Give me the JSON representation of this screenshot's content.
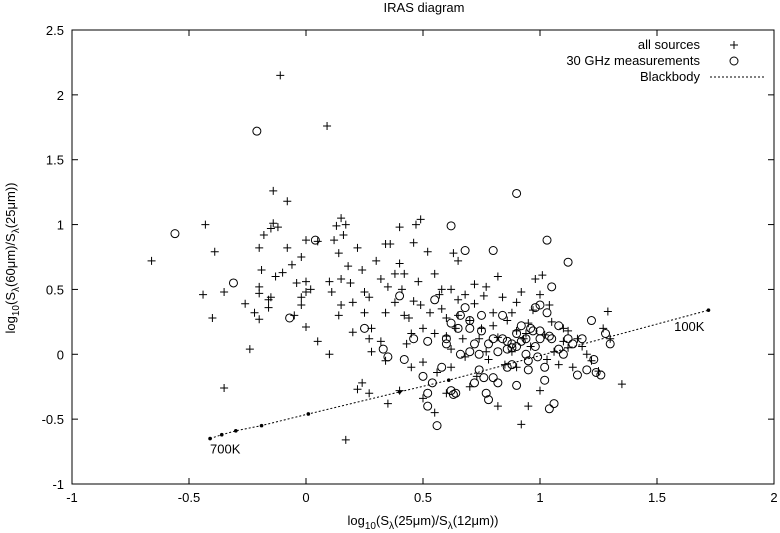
{
  "chart_data": {
    "type": "scatter",
    "title": "IRAS diagram",
    "xlabel": {
      "prefix": "log",
      "sub1": "10",
      "mid1": "(S",
      "sub2": "λ",
      "mid2": "(25μm)/S",
      "sub3": "λ",
      "suffix": "(12μm))"
    },
    "ylabel": {
      "prefix": "log",
      "sub1": "10",
      "mid1": "(S",
      "sub2": "λ",
      "mid2": "(60μm)/S",
      "sub3": "λ",
      "suffix": "(25μm))"
    },
    "xlim": [
      -1,
      2
    ],
    "ylim": [
      -1,
      2.5
    ],
    "xticks": [
      -1,
      -0.5,
      0,
      0.5,
      1,
      1.5,
      2
    ],
    "xtick_labels": [
      "-1",
      "-0.5",
      "0",
      "0.5",
      "1",
      "1.5",
      "2"
    ],
    "yticks": [
      -1,
      -0.5,
      0,
      0.5,
      1,
      1.5,
      2,
      2.5
    ],
    "ytick_labels": [
      "-1",
      "-0.5",
      "0",
      "0.5",
      "1",
      "1.5",
      "2",
      "2.5"
    ],
    "grid": false,
    "legend_position": "top-right",
    "series": [
      {
        "name": "all sources",
        "marker": "plus",
        "points": [
          [
            -0.66,
            0.72
          ],
          [
            -0.43,
            1.0
          ],
          [
            -0.44,
            0.46
          ],
          [
            -0.39,
            0.79
          ],
          [
            -0.4,
            0.28
          ],
          [
            -0.35,
            0.48
          ],
          [
            -0.35,
            -0.26
          ],
          [
            -0.26,
            0.39
          ],
          [
            -0.24,
            0.04
          ],
          [
            -0.22,
            0.32
          ],
          [
            -0.2,
            0.27
          ],
          [
            -0.2,
            0.47
          ],
          [
            -0.2,
            0.52
          ],
          [
            -0.2,
            0.82
          ],
          [
            -0.19,
            0.65
          ],
          [
            -0.18,
            0.92
          ],
          [
            -0.16,
            0.42
          ],
          [
            -0.16,
            0.36
          ],
          [
            -0.15,
            0.44
          ],
          [
            -0.15,
            0.97
          ],
          [
            -0.14,
            1.01
          ],
          [
            -0.14,
            1.26
          ],
          [
            -0.12,
            0.98
          ],
          [
            -0.11,
            2.15
          ],
          [
            -0.1,
            0.63
          ],
          [
            -0.08,
            1.18
          ],
          [
            -0.08,
            0.82
          ],
          [
            -0.06,
            0.69
          ],
          [
            -0.04,
            0.55
          ],
          [
            -0.02,
            0.44
          ],
          [
            -0.02,
            0.38
          ],
          [
            0.0,
            0.56
          ],
          [
            -0.02,
            0.75
          ],
          [
            0.0,
            0.48
          ],
          [
            0.0,
            0.21
          ],
          [
            0.0,
            0.88
          ],
          [
            0.02,
            0.5
          ],
          [
            0.05,
            0.87
          ],
          [
            0.09,
            1.76
          ],
          [
            0.1,
            0.56
          ],
          [
            0.11,
            0.48
          ],
          [
            0.12,
            0.88
          ],
          [
            0.13,
            0.99
          ],
          [
            0.14,
            0.78
          ],
          [
            0.15,
            1.05
          ],
          [
            0.15,
            0.58
          ],
          [
            0.15,
            0.38
          ],
          [
            0.16,
            0.92
          ],
          [
            0.17,
            1.0
          ],
          [
            0.17,
            -0.66
          ],
          [
            0.19,
            0.55
          ],
          [
            0.2,
            0.4
          ],
          [
            0.2,
            0.17
          ],
          [
            0.22,
            0.82
          ],
          [
            0.24,
            0.65
          ],
          [
            0.25,
            0.48
          ],
          [
            0.25,
            0.32
          ],
          [
            0.27,
            0.44
          ],
          [
            0.27,
            0.12
          ],
          [
            0.28,
            0.02
          ],
          [
            0.3,
            0.72
          ],
          [
            0.32,
            0.58
          ],
          [
            0.34,
            0.85
          ],
          [
            0.34,
            0.32
          ],
          [
            0.35,
            0.52
          ],
          [
            0.36,
            0.85
          ],
          [
            0.38,
            0.62
          ],
          [
            0.38,
            0.4
          ],
          [
            0.4,
            0.98
          ],
          [
            0.4,
            0.7
          ],
          [
            0.41,
            0.5
          ],
          [
            0.42,
            0.62
          ],
          [
            0.42,
            0.3
          ],
          [
            0.43,
            0.08
          ],
          [
            0.44,
            0.28
          ],
          [
            0.45,
            0.16
          ],
          [
            0.46,
            0.41
          ],
          [
            0.46,
            0.86
          ],
          [
            0.47,
            1.0
          ],
          [
            0.48,
            0.56
          ],
          [
            0.49,
            1.04
          ],
          [
            0.49,
            0.38
          ],
          [
            0.5,
            0.2
          ],
          [
            0.5,
            -0.06
          ],
          [
            0.52,
            0.79
          ],
          [
            0.53,
            0.32
          ],
          [
            0.55,
            0.62
          ],
          [
            0.55,
            0.16
          ],
          [
            0.56,
            -0.14
          ],
          [
            0.57,
            0.46
          ],
          [
            0.58,
            0.35
          ],
          [
            0.6,
            0.28
          ],
          [
            0.6,
            0.14
          ],
          [
            0.62,
            0.5
          ],
          [
            0.62,
            -0.1
          ],
          [
            0.63,
            0.78
          ],
          [
            0.64,
            0.2
          ],
          [
            0.65,
            0.72
          ],
          [
            0.65,
            0.42
          ],
          [
            0.65,
            0.3
          ],
          [
            0.67,
            0.12
          ],
          [
            0.68,
            0.46
          ],
          [
            0.68,
            -0.02
          ],
          [
            0.7,
            0.26
          ],
          [
            0.72,
            0.54
          ],
          [
            0.72,
            0.39
          ],
          [
            0.73,
            -0.17
          ],
          [
            0.74,
            0.12
          ],
          [
            0.75,
            0.2
          ],
          [
            0.76,
            0.45
          ],
          [
            0.77,
            0.52
          ],
          [
            0.77,
            0.02
          ],
          [
            0.78,
            -0.04
          ],
          [
            0.8,
            0.32
          ],
          [
            0.8,
            0.22
          ],
          [
            0.82,
            0.13
          ],
          [
            0.82,
            0.6
          ],
          [
            0.84,
            0.44
          ],
          [
            0.85,
            -0.08
          ],
          [
            0.86,
            0.26
          ],
          [
            0.88,
            0.02
          ],
          [
            0.9,
            0.4
          ],
          [
            0.9,
            0.18
          ],
          [
            0.92,
            0.48
          ],
          [
            0.93,
            0.12
          ],
          [
            0.95,
            0.24
          ],
          [
            0.96,
            0.06
          ],
          [
            0.97,
            0.34
          ],
          [
            0.98,
            0.58
          ],
          [
            1.0,
            0.46
          ],
          [
            1.01,
            0.61
          ],
          [
            1.02,
            0.15
          ],
          [
            1.03,
            -0.04
          ],
          [
            1.05,
            0.25
          ],
          [
            1.06,
            0.02
          ],
          [
            1.08,
            -0.08
          ],
          [
            1.1,
            0.2
          ],
          [
            1.1,
            0.1
          ],
          [
            1.12,
            0.05
          ],
          [
            1.14,
            -0.1
          ],
          [
            1.16,
            0.12
          ],
          [
            1.18,
            0.06
          ],
          [
            1.2,
            0.0
          ],
          [
            1.22,
            -0.05
          ],
          [
            1.25,
            -0.13
          ],
          [
            1.27,
            0.2
          ],
          [
            1.29,
            0.33
          ],
          [
            1.3,
            0.12
          ],
          [
            1.35,
            -0.23
          ],
          [
            0.92,
            -0.54
          ],
          [
            0.95,
            -0.4
          ],
          [
            0.55,
            -0.45
          ],
          [
            0.35,
            -0.38
          ],
          [
            0.27,
            -0.3
          ],
          [
            0.22,
            -0.27
          ],
          [
            0.24,
            -0.22
          ],
          [
            0.4,
            -0.28
          ],
          [
            0.45,
            -0.1
          ],
          [
            0.5,
            -0.34
          ],
          [
            0.6,
            -0.3
          ],
          [
            0.82,
            -0.4
          ],
          [
            1.0,
            -0.28
          ],
          [
            -0.13,
            0.6
          ],
          [
            -0.05,
            0.3
          ],
          [
            0.05,
            0.1
          ],
          [
            0.1,
            0.0
          ],
          [
            0.18,
            0.68
          ],
          [
            0.28,
            0.2
          ],
          [
            0.32,
            0.1
          ],
          [
            0.58,
            0.5
          ],
          [
            0.7,
            -0.25
          ],
          [
            0.62,
            0.04
          ],
          [
            0.88,
            0.32
          ],
          [
            0.9,
            -0.1
          ],
          [
            0.94,
            0.16
          ],
          [
            1.04,
            0.38
          ],
          [
            1.12,
            0.18
          ],
          [
            0.34,
            -0.05
          ],
          [
            0.14,
            0.3
          ]
        ]
      },
      {
        "name": "30 GHz measurements",
        "marker": "circle",
        "points": [
          [
            -0.56,
            0.93
          ],
          [
            -0.31,
            0.55
          ],
          [
            -0.21,
            1.72
          ],
          [
            -0.07,
            0.28
          ],
          [
            0.04,
            0.88
          ],
          [
            0.25,
            0.2
          ],
          [
            0.33,
            0.04
          ],
          [
            0.35,
            -0.02
          ],
          [
            0.4,
            0.45
          ],
          [
            0.42,
            -0.04
          ],
          [
            0.5,
            -0.17
          ],
          [
            0.52,
            0.1
          ],
          [
            0.52,
            -0.3
          ],
          [
            0.52,
            -0.4
          ],
          [
            0.54,
            -0.22
          ],
          [
            0.55,
            0.42
          ],
          [
            0.56,
            -0.55
          ],
          [
            0.58,
            -0.1
          ],
          [
            0.6,
            0.12
          ],
          [
            0.62,
            0.24
          ],
          [
            0.62,
            -0.28
          ],
          [
            0.63,
            -0.31
          ],
          [
            0.64,
            -0.3
          ],
          [
            0.65,
            0.2
          ],
          [
            0.66,
            0.3
          ],
          [
            0.66,
            0.0
          ],
          [
            0.68,
            0.8
          ],
          [
            0.7,
            0.26
          ],
          [
            0.72,
            -0.22
          ],
          [
            0.72,
            0.08
          ],
          [
            0.74,
            -0.12
          ],
          [
            0.75,
            0.18
          ],
          [
            0.75,
            0.3
          ],
          [
            0.76,
            -0.18
          ],
          [
            0.77,
            -0.3
          ],
          [
            0.78,
            -0.35
          ],
          [
            0.78,
            0.08
          ],
          [
            0.8,
            0.12
          ],
          [
            0.8,
            -0.18
          ],
          [
            0.8,
            0.8
          ],
          [
            0.82,
            -0.22
          ],
          [
            0.84,
            0.12
          ],
          [
            0.86,
            0.1
          ],
          [
            0.86,
            -0.1
          ],
          [
            0.86,
            0.04
          ],
          [
            0.88,
            -0.08
          ],
          [
            0.88,
            0.05
          ],
          [
            0.9,
            1.24
          ],
          [
            0.9,
            0.16
          ],
          [
            0.9,
            -0.24
          ],
          [
            0.92,
            0.22
          ],
          [
            0.92,
            0.1
          ],
          [
            0.94,
            0.12
          ],
          [
            0.94,
            0.0
          ],
          [
            0.95,
            -0.12
          ],
          [
            0.96,
            0.2
          ],
          [
            0.97,
            0.18
          ],
          [
            0.98,
            0.36
          ],
          [
            0.98,
            0.06
          ],
          [
            0.99,
            -0.02
          ],
          [
            1.0,
            0.18
          ],
          [
            1.0,
            0.38
          ],
          [
            1.0,
            0.12
          ],
          [
            1.02,
            -0.1
          ],
          [
            1.02,
            -0.2
          ],
          [
            1.03,
            0.88
          ],
          [
            1.03,
            0.32
          ],
          [
            1.04,
            -0.42
          ],
          [
            1.05,
            0.12
          ],
          [
            1.05,
            0.52
          ],
          [
            1.06,
            -0.38
          ],
          [
            1.08,
            0.04
          ],
          [
            1.08,
            0.22
          ],
          [
            1.1,
            0.0
          ],
          [
            1.12,
            0.71
          ],
          [
            1.12,
            0.12
          ],
          [
            1.14,
            0.08
          ],
          [
            1.16,
            -0.16
          ],
          [
            1.18,
            0.12
          ],
          [
            1.2,
            -0.12
          ],
          [
            1.22,
            0.26
          ],
          [
            1.23,
            -0.04
          ],
          [
            1.24,
            -0.14
          ],
          [
            1.26,
            -0.16
          ],
          [
            1.28,
            0.16
          ],
          [
            1.3,
            0.08
          ],
          [
            0.46,
            0.12
          ],
          [
            0.7,
            0.02
          ],
          [
            0.74,
            0.0
          ],
          [
            0.95,
            -0.05
          ],
          [
            0.88,
            0.08
          ],
          [
            0.82,
            0.02
          ],
          [
            0.84,
            0.3
          ],
          [
            1.04,
            0.14
          ],
          [
            0.9,
            0.06
          ],
          [
            0.68,
            0.36
          ],
          [
            0.7,
            0.2
          ],
          [
            0.6,
            0.08
          ],
          [
            0.62,
            0.99
          ]
        ]
      },
      {
        "name": "Blackbody",
        "marker": "dotted-line",
        "points": [
          [
            -0.41,
            -0.65
          ],
          [
            -0.36,
            -0.62
          ],
          [
            -0.3,
            -0.59
          ],
          [
            -0.19,
            -0.55
          ],
          [
            0.01,
            -0.46
          ],
          [
            0.4,
            -0.29
          ],
          [
            0.61,
            -0.2
          ],
          [
            1.72,
            0.34
          ]
        ]
      }
    ],
    "annotations": [
      {
        "text": "700K",
        "x": -0.41,
        "y": -0.65
      },
      {
        "text": "100K",
        "x": 1.72,
        "y": 0.34
      }
    ]
  }
}
